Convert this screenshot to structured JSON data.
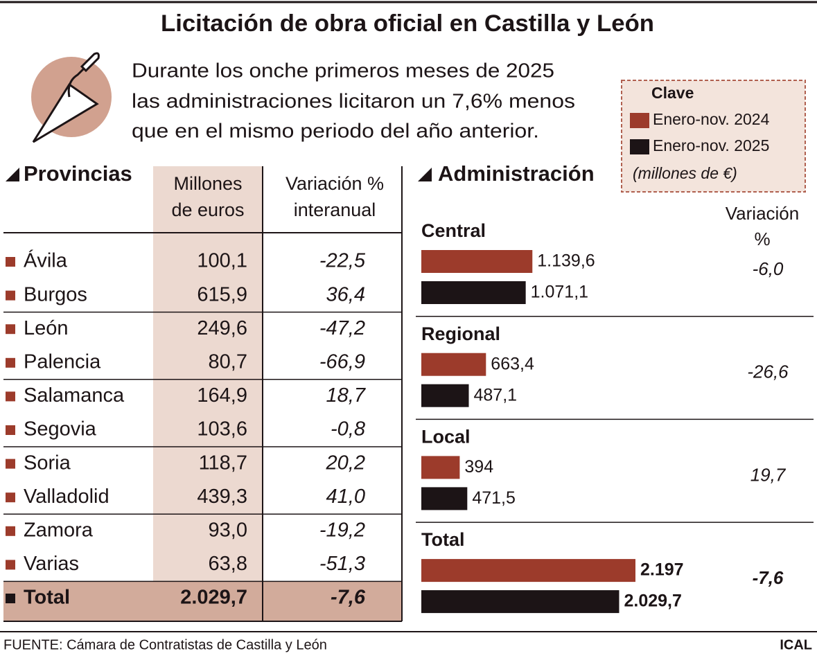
{
  "title": "Licitación de obra oficial en Castilla y León",
  "intro": [
    "Durante los onche primeros meses de 2025",
    "las administraciones licitaron un 7,6% menos",
    "que en el mismo periodo del año anterior."
  ],
  "provinces": {
    "title": "Provincias",
    "columns": [
      [
        "Millones",
        "de euros"
      ],
      [
        "Variación %",
        "interanual"
      ]
    ],
    "rows": [
      [
        "Ávila",
        "100,1",
        "-22,5"
      ],
      [
        "Burgos",
        "615,9",
        "36,4"
      ],
      [
        "León",
        "249,6",
        "-47,2"
      ],
      [
        "Palencia",
        "80,7",
        "-66,9"
      ],
      [
        "Salamanca",
        "164,9",
        "18,7"
      ],
      [
        "Segovia",
        "103,6",
        "-0,8"
      ],
      [
        "Soria",
        "118,7",
        "20,2"
      ],
      [
        "Valladolid",
        "439,3",
        "41,0"
      ],
      [
        "Zamora",
        "93,0",
        "-19,2"
      ],
      [
        "Varias",
        "63,8",
        "-51,3"
      ]
    ],
    "total": [
      "Total",
      "2.029,7",
      "-7,6"
    ]
  },
  "chart_data": {
    "type": "bar",
    "title": "Administración",
    "legend_title": "Clave",
    "unit_note": "(millones de €)",
    "categories": [
      "Central",
      "Regional",
      "Local",
      "Total"
    ],
    "series": [
      {
        "name": "Enero-nov. 2024",
        "color": "#9c3b2b",
        "values": [
          1139.6,
          663.4,
          394,
          2197
        ],
        "value_labels": [
          "1.139,6",
          "663,4",
          "394",
          "2.197"
        ]
      },
      {
        "name": "Enero-nov. 2025",
        "color": "#1c1416",
        "values": [
          1071.1,
          487.1,
          471.5,
          2029.7
        ],
        "value_labels": [
          "1.071,1",
          "487,1",
          "471,5",
          "2.029,7"
        ]
      }
    ],
    "variation_title": [
      "Variación",
      "%"
    ],
    "variation": [
      "-6,0",
      "-26,6",
      "19,7",
      "-7,6"
    ]
  },
  "source": "FUENTE: Cámara de Contratistas de Castilla y León",
  "credit": "ICAL"
}
